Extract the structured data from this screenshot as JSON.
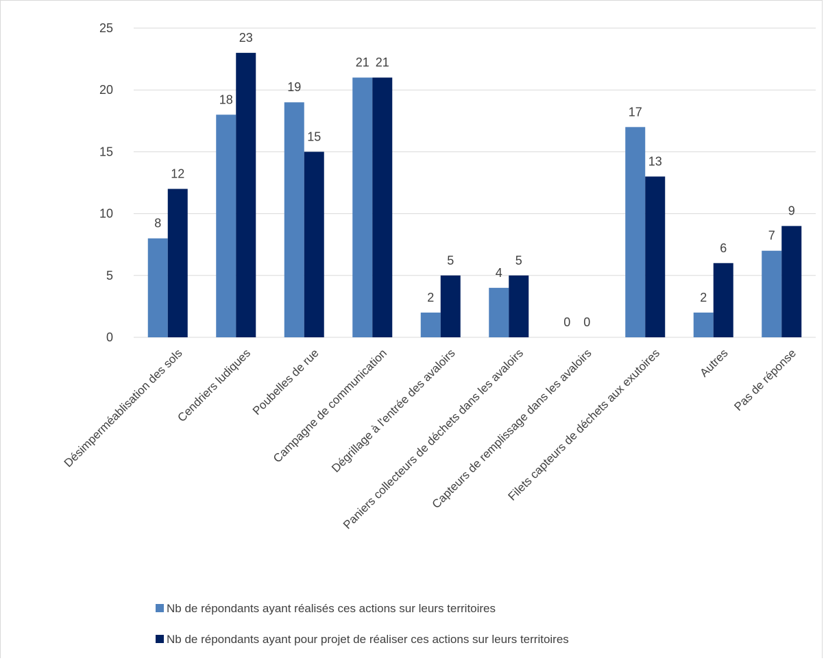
{
  "chart_data": {
    "type": "bar",
    "title": "",
    "xlabel": "",
    "ylabel": "",
    "ylim": [
      0,
      25
    ],
    "yticks": [
      0,
      5,
      10,
      15,
      20,
      25
    ],
    "grid": true,
    "legend_position": "bottom",
    "categories": [
      "Désimperméablisation des sols",
      "Cendriers ludiques",
      "Poubelles de rue",
      "Campagne de communication",
      "Dégrillage à l'entrée des avaloirs",
      "Paniers collecteurs de déchets dans les avaloirs",
      "Capteurs de remplissage dans les avaloirs",
      "Filets capteurs de déchets aux exutoires",
      "Autres",
      "Pas de réponse"
    ],
    "series": [
      {
        "name": "Nb de répondants ayant réalisés ces actions sur leurs territoires",
        "color": "#4F81BD",
        "values": [
          8,
          18,
          19,
          21,
          2,
          4,
          0,
          17,
          2,
          7
        ]
      },
      {
        "name": "Nb de répondants ayant pour projet de réaliser ces actions sur leurs territoires",
        "color": "#002060",
        "values": [
          12,
          23,
          15,
          21,
          5,
          5,
          0,
          13,
          6,
          9
        ]
      }
    ]
  }
}
